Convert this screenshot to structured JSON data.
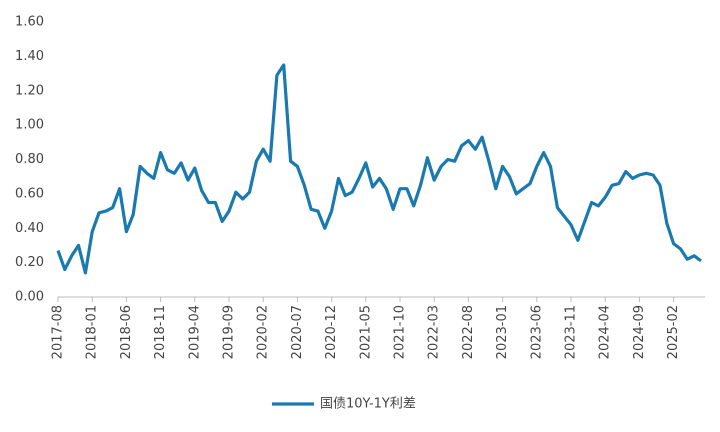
{
  "chart_data": {
    "type": "line",
    "categories": [
      "2017-08",
      null,
      null,
      null,
      null,
      "2018-01",
      null,
      null,
      null,
      null,
      "2018-06",
      null,
      null,
      null,
      null,
      "2018-11",
      null,
      null,
      null,
      null,
      "2019-04",
      null,
      null,
      null,
      null,
      "2019-09",
      null,
      null,
      null,
      null,
      "2020-02",
      null,
      null,
      null,
      null,
      "2020-07",
      null,
      null,
      null,
      null,
      "2020-12",
      null,
      null,
      null,
      null,
      "2021-05",
      null,
      null,
      null,
      null,
      "2021-10",
      null,
      null,
      null,
      null,
      "2022-03",
      null,
      null,
      null,
      null,
      "2022-08",
      null,
      null,
      null,
      null,
      "2023-01",
      null,
      null,
      null,
      null,
      "2023-06",
      null,
      null,
      null,
      null,
      "2023-11",
      null,
      null,
      null,
      null,
      "2024-04",
      null,
      null,
      null,
      null,
      "2024-09",
      null,
      null,
      null,
      null,
      "2025-02",
      null,
      null,
      null,
      null
    ],
    "series": [
      {
        "name": "国债10Y-1Y利差",
        "color": "#1a7ab0",
        "values": [
          0.27,
          0.16,
          0.24,
          0.3,
          0.14,
          0.38,
          0.49,
          0.5,
          0.52,
          0.63,
          0.38,
          0.48,
          0.76,
          0.72,
          0.69,
          0.84,
          0.74,
          0.72,
          0.78,
          0.68,
          0.75,
          0.62,
          0.55,
          0.55,
          0.44,
          0.5,
          0.61,
          0.57,
          0.61,
          0.79,
          0.86,
          0.79,
          1.29,
          1.35,
          0.79,
          0.76,
          0.65,
          0.51,
          0.5,
          0.4,
          0.5,
          0.69,
          0.59,
          0.61,
          0.69,
          0.78,
          0.64,
          0.69,
          0.63,
          0.51,
          0.63,
          0.63,
          0.53,
          0.65,
          0.81,
          0.68,
          0.76,
          0.8,
          0.79,
          0.88,
          0.91,
          0.86,
          0.93,
          0.79,
          0.63,
          0.76,
          0.7,
          0.6,
          0.63,
          0.66,
          0.76,
          0.84,
          0.76,
          0.52,
          0.47,
          0.42,
          0.33,
          0.44,
          0.55,
          0.53,
          0.58,
          0.65,
          0.66,
          0.73,
          0.69,
          0.71,
          0.72,
          0.71,
          0.65,
          0.43,
          0.31,
          0.28,
          0.22,
          0.24,
          0.21
        ]
      }
    ],
    "ylim": [
      0,
      1.6
    ],
    "yticks": [
      {
        "value": 0,
        "label": "0.00"
      },
      {
        "value": 0.2,
        "label": "0.20"
      },
      {
        "value": 0.4,
        "label": "0.40"
      },
      {
        "value": 0.6,
        "label": "0.60"
      },
      {
        "value": 0.8,
        "label": "0.80"
      },
      {
        "value": 1.0,
        "label": "1.00"
      },
      {
        "value": 1.2,
        "label": "1.20"
      },
      {
        "value": 1.4,
        "label": "1.40"
      },
      {
        "value": 1.6,
        "label": "1.60"
      }
    ],
    "grid": false,
    "legend": "bottom"
  }
}
